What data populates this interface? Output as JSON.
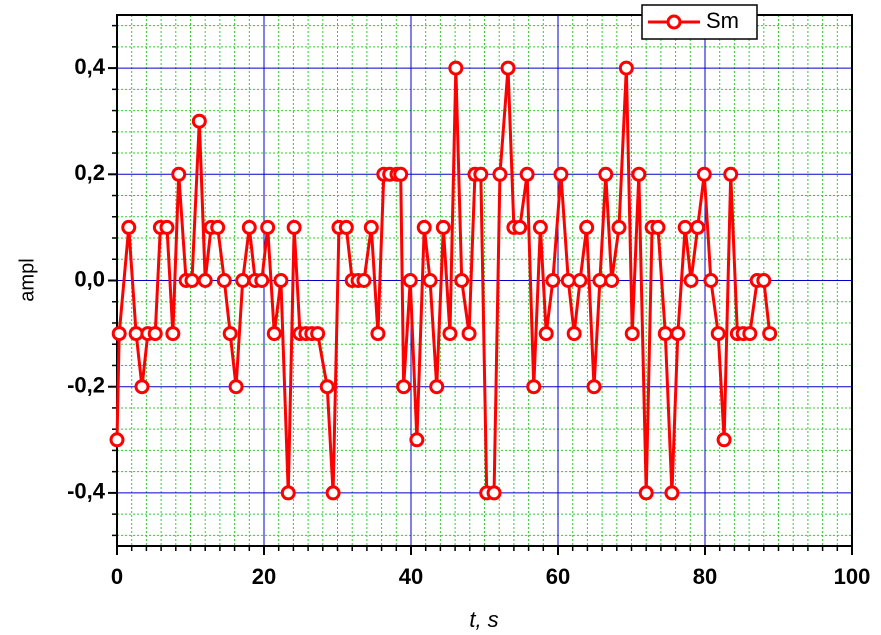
{
  "chart_data": {
    "type": "line",
    "x_label": "t, s",
    "y_label": "ampl",
    "x": [
      0,
      0.3,
      1.6,
      2.6,
      3.4,
      4.2,
      5.2,
      5.9,
      6.8,
      7.6,
      8.4,
      9.4,
      10.2,
      11.2,
      12.0,
      12.8,
      13.7,
      14.6,
      15.4,
      16.2,
      17.1,
      18.0,
      18.8,
      19.7,
      20.5,
      21.4,
      22.3,
      23.3,
      24.1,
      24.9,
      25.7,
      26.5,
      27.3,
      28.6,
      29.4,
      30.2,
      31.2,
      32.0,
      32.8,
      33.6,
      34.6,
      35.5,
      36.3,
      37.1,
      38.1,
      38.6,
      39.0,
      39.9,
      40.8,
      41.8,
      42.6,
      43.5,
      44.4,
      45.3,
      46.1,
      46.9,
      47.9,
      48.7,
      49.5,
      50.3,
      51.3,
      52.1,
      53.2,
      54.0,
      54.8,
      55.8,
      56.7,
      57.6,
      58.4,
      59.3,
      60.4,
      61.4,
      62.2,
      63.0,
      63.9,
      64.9,
      65.7,
      66.5,
      67.3,
      68.3,
      69.3,
      70.1,
      71.0,
      72.0,
      72.8,
      73.6,
      74.6,
      75.5,
      76.3,
      77.3,
      78.1,
      79.0,
      79.9,
      80.8,
      81.8,
      82.6,
      83.5,
      84.4,
      85.2,
      86.1,
      87.1,
      88.0,
      88.8
    ],
    "series": [
      {
        "name": "Sm",
        "color": "#ff0000",
        "values": [
          -0.3,
          -0.1,
          0.1,
          -0.1,
          -0.2,
          -0.1,
          -0.1,
          0.1,
          0.1,
          -0.1,
          0.2,
          0,
          0,
          0.3,
          0,
          0.1,
          0.1,
          0,
          -0.1,
          -0.2,
          0,
          0.1,
          0,
          0,
          0.1,
          -0.1,
          0,
          -0.4,
          0.1,
          -0.1,
          -0.1,
          -0.1,
          -0.1,
          -0.2,
          -0.4,
          0.1,
          0.1,
          0,
          0,
          0,
          0.1,
          -0.1,
          0.2,
          0.2,
          0.2,
          0.2,
          -0.2,
          0,
          -0.3,
          0.1,
          0,
          -0.2,
          0.1,
          -0.1,
          0.4,
          0,
          -0.1,
          0.2,
          0.2,
          -0.4,
          -0.4,
          0.2,
          0.4,
          0.1,
          0.1,
          0.2,
          -0.2,
          0.1,
          -0.1,
          0,
          0.2,
          0,
          -0.1,
          0,
          0.1,
          -0.2,
          0,
          0.2,
          0,
          0.1,
          0.4,
          -0.1,
          0.2,
          -0.4,
          0.1,
          0.1,
          -0.1,
          -0.4,
          -0.1,
          0.1,
          0,
          0.1,
          0.2,
          0,
          -0.1,
          -0.3,
          0.2,
          -0.1,
          -0.1,
          -0.1,
          0,
          0,
          -0.1
        ]
      }
    ],
    "xlim": [
      0,
      100
    ],
    "ylim": [
      -0.5,
      0.5
    ],
    "xticks": [
      0,
      20,
      40,
      60,
      80,
      100
    ],
    "yticks": [
      {
        "value": -0.4,
        "label": "-0,4"
      },
      {
        "value": -0.2,
        "label": "-0,2"
      },
      {
        "value": 0,
        "label": "0,0"
      },
      {
        "value": 0.2,
        "label": "0,2"
      },
      {
        "value": 0.4,
        "label": "0,4"
      }
    ],
    "x_minor_ticks": [
      2,
      4,
      6,
      8,
      10,
      12,
      14,
      16,
      18,
      22,
      24,
      26,
      28,
      30,
      32,
      34,
      36,
      38,
      42,
      44,
      46,
      48,
      50,
      52,
      54,
      56,
      58,
      62,
      64,
      66,
      68,
      70,
      72,
      74,
      76,
      78,
      82,
      84,
      86,
      88,
      90,
      92,
      94,
      96,
      98
    ],
    "y_minor_ticks": [
      -0.48,
      -0.44,
      -0.36,
      -0.32,
      -0.28,
      -0.24,
      -0.16,
      -0.12,
      -0.08,
      -0.04,
      0.04,
      0.08,
      0.12,
      0.16,
      0.24,
      0.28,
      0.32,
      0.36,
      0.44,
      0.48
    ],
    "grid": true,
    "legend": "upper right"
  }
}
